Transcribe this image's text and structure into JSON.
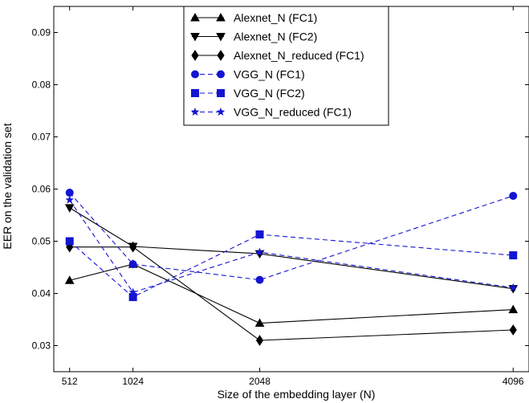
{
  "chart_data": {
    "type": "line",
    "title": "",
    "xlabel": "Size of the embedding layer (N)",
    "ylabel": "EER on the validation set",
    "x": [
      512,
      1024,
      2048,
      4096
    ],
    "x_tick_labels": [
      "512",
      "1024",
      "2048",
      "4096"
    ],
    "xlim": [
      384,
      4224
    ],
    "ylim": [
      0.025,
      0.095
    ],
    "y_ticks": [
      0.03,
      0.04,
      0.05,
      0.06,
      0.07,
      0.08,
      0.09
    ],
    "y_tick_labels": [
      "0.03",
      "0.04",
      "0.05",
      "0.06",
      "0.07",
      "0.08",
      "0.09"
    ],
    "grid": false,
    "legend_position": "top-center",
    "series": [
      {
        "name": "Alexnet_N (FC1)",
        "values": [
          0.0425,
          0.0456,
          0.0343,
          0.0369
        ],
        "color": "#000000",
        "marker": "triangle-up",
        "dash": "solid"
      },
      {
        "name": "Alexnet_N (FC2)",
        "values": [
          0.0564,
          0.049,
          0.0476,
          0.0409
        ],
        "color": "#000000",
        "marker": "triangle-down",
        "dash": "solid"
      },
      {
        "name": "Alexnet_N_reduced (FC1)",
        "values": [
          0.0489,
          0.0489,
          0.031,
          0.033
        ],
        "color": "#000000",
        "marker": "diamond",
        "dash": "solid"
      },
      {
        "name": "VGG_N (FC1)",
        "values": [
          0.0593,
          0.0456,
          0.0426,
          0.0587
        ],
        "color": "#1414d2",
        "marker": "circle",
        "dash": "dashed"
      },
      {
        "name": "VGG_N (FC2)",
        "values": [
          0.05,
          0.0393,
          0.0513,
          0.0473
        ],
        "color": "#1414d2",
        "marker": "square",
        "dash": "dashed"
      },
      {
        "name": "VGG_N_reduced (FC1)",
        "values": [
          0.0579,
          0.0402,
          0.0479,
          0.0411
        ],
        "color": "#1414d2",
        "marker": "star",
        "dash": "dashed"
      }
    ]
  }
}
